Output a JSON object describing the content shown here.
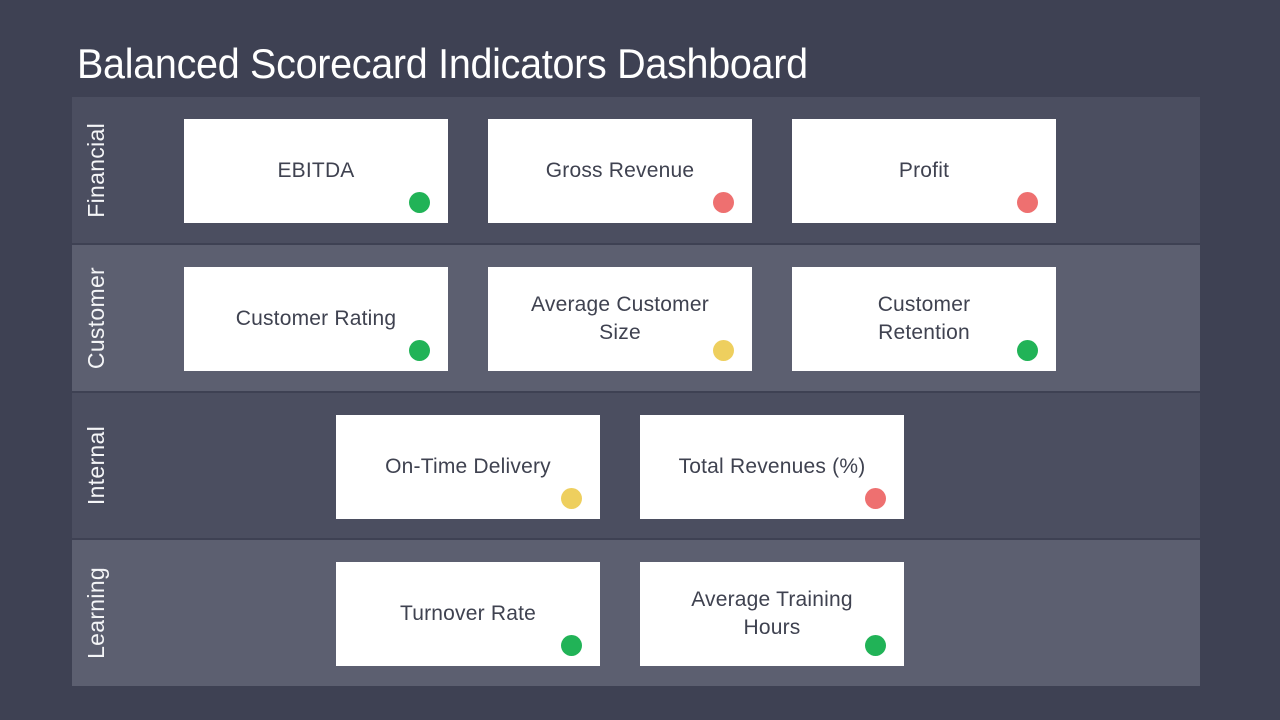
{
  "title": "Balanced Scorecard Indicators Dashboard",
  "colors": {
    "page_background": "#3e4153",
    "band_dark": "#4b4e60",
    "band_light": "#5c5f70",
    "card_background": "#ffffff",
    "card_text": "#3f4250",
    "title_text": "#ffffff",
    "status_green": "#21b357",
    "status_red": "#ee7070",
    "status_yellow": "#eecf5e"
  },
  "rows": [
    {
      "label": "Financial",
      "cards": [
        {
          "label": "EBITDA",
          "status": "green"
        },
        {
          "label": "Gross Revenue",
          "status": "red"
        },
        {
          "label": "Profit",
          "status": "red"
        }
      ]
    },
    {
      "label": "Customer",
      "cards": [
        {
          "label": "Customer Rating",
          "status": "green"
        },
        {
          "label": "Average Customer\nSize",
          "status": "yellow"
        },
        {
          "label": "Customer\nRetention",
          "status": "green"
        }
      ]
    },
    {
      "label": "Internal",
      "cards": [
        {
          "label": "On-Time Delivery",
          "status": "yellow"
        },
        {
          "label": "Total Revenues (%)",
          "status": "red"
        }
      ]
    },
    {
      "label": "Learning",
      "cards": [
        {
          "label": "Turnover Rate",
          "status": "green"
        },
        {
          "label": "Average Training\nHours",
          "status": "green"
        }
      ]
    }
  ]
}
